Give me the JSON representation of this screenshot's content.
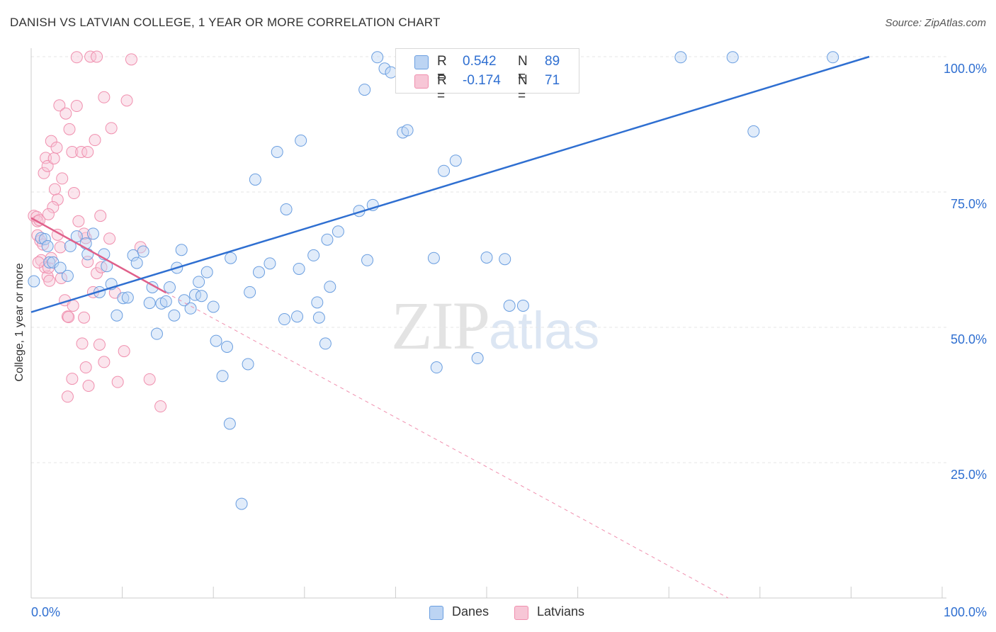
{
  "title": "DANISH VS LATVIAN COLLEGE, 1 YEAR OR MORE CORRELATION CHART",
  "source": "Source: ZipAtlas.com",
  "watermark": {
    "zip": "ZIP",
    "atlas": "atlas"
  },
  "colors": {
    "danes": "#6a9ee0",
    "danes_fill": "#bcd4f3",
    "danes_line": "#2f6fd1",
    "latvians": "#f08fae",
    "latvians_fill": "#f7c6d6",
    "latvians_line": "#e0608a",
    "value_text": "#2f6fd1"
  },
  "stats": [
    {
      "r_label": "R =",
      "r_value": "0.542",
      "n_label": "N =",
      "n_value": "89"
    },
    {
      "r_label": "R =",
      "r_value": "-0.174",
      "n_label": "N =",
      "n_value": "71"
    }
  ],
  "legend": [
    {
      "label": "Danes"
    },
    {
      "label": "Latvians"
    }
  ],
  "chart_data": {
    "type": "scatter",
    "ylabel": "College, 1 year or more",
    "xlabel": "",
    "x_tick_labels": [
      "0.0%",
      "100.0%"
    ],
    "y_tick_labels": [
      "25.0%",
      "50.0%",
      "75.0%",
      "100.0%"
    ],
    "xlim": [
      0,
      100
    ],
    "ylim": [
      0,
      100
    ],
    "grid": true,
    "legend_position": "bottom-center",
    "series": [
      {
        "name": "Danes",
        "trend": {
          "x": [
            0,
            92
          ],
          "y": [
            52.8,
            100
          ]
        },
        "points": [
          [
            0.3,
            58.5
          ],
          [
            1.1,
            66.5
          ],
          [
            1.5,
            66.3
          ],
          [
            1.8,
            65.0
          ],
          [
            2.0,
            62.0
          ],
          [
            2.4,
            62.0
          ],
          [
            3.2,
            61.0
          ],
          [
            4.0,
            59.5
          ],
          [
            4.3,
            65.0
          ],
          [
            5.0,
            66.8
          ],
          [
            6.0,
            65.5
          ],
          [
            6.2,
            63.5
          ],
          [
            6.8,
            67.3
          ],
          [
            7.5,
            56.5
          ],
          [
            8.0,
            63.5
          ],
          [
            8.3,
            61.3
          ],
          [
            8.8,
            58.0
          ],
          [
            9.4,
            52.2
          ],
          [
            10.1,
            55.4
          ],
          [
            10.6,
            55.5
          ],
          [
            11.2,
            63.3
          ],
          [
            11.6,
            61.9
          ],
          [
            12.3,
            64.0
          ],
          [
            13.0,
            54.5
          ],
          [
            13.3,
            57.4
          ],
          [
            13.8,
            48.8
          ],
          [
            14.3,
            54.4
          ],
          [
            14.8,
            54.8
          ],
          [
            15.2,
            57.4
          ],
          [
            15.7,
            52.2
          ],
          [
            16.0,
            61.0
          ],
          [
            16.5,
            64.3
          ],
          [
            16.8,
            55.0
          ],
          [
            17.5,
            53.5
          ],
          [
            18.0,
            56.0
          ],
          [
            18.4,
            58.4
          ],
          [
            18.7,
            55.8
          ],
          [
            19.3,
            60.2
          ],
          [
            20.0,
            53.8
          ],
          [
            20.3,
            47.5
          ],
          [
            21.0,
            41.0
          ],
          [
            21.5,
            46.4
          ],
          [
            21.9,
            62.8
          ],
          [
            23.1,
            17.4
          ],
          [
            23.8,
            43.2
          ],
          [
            24.0,
            56.5
          ],
          [
            24.6,
            77.3
          ],
          [
            25.0,
            60.2
          ],
          [
            26.2,
            61.8
          ],
          [
            28.0,
            71.8
          ],
          [
            27.0,
            82.4
          ],
          [
            27.8,
            51.5
          ],
          [
            29.2,
            52.0
          ],
          [
            29.6,
            84.5
          ],
          [
            29.4,
            60.8
          ],
          [
            21.8,
            32.2
          ],
          [
            31.0,
            63.3
          ],
          [
            31.4,
            54.6
          ],
          [
            31.6,
            51.8
          ],
          [
            32.3,
            47.0
          ],
          [
            32.5,
            66.2
          ],
          [
            32.8,
            57.5
          ],
          [
            33.7,
            67.7
          ],
          [
            36.6,
            93.9
          ],
          [
            36.0,
            71.5
          ],
          [
            36.9,
            62.4
          ],
          [
            37.5,
            72.6
          ],
          [
            38.0,
            99.9
          ],
          [
            38.8,
            97.8
          ],
          [
            39.5,
            97.1
          ],
          [
            40.8,
            86.0
          ],
          [
            41.3,
            86.4
          ],
          [
            44.2,
            62.8
          ],
          [
            44.5,
            42.6
          ],
          [
            46.6,
            80.8
          ],
          [
            47.0,
            99.9
          ],
          [
            47.5,
            98.5
          ],
          [
            49.0,
            44.3
          ],
          [
            50.0,
            62.9
          ],
          [
            52.0,
            62.6
          ],
          [
            52.5,
            54.0
          ],
          [
            54.0,
            54.0
          ],
          [
            55.0,
            100.0
          ],
          [
            55.5,
            99.8
          ],
          [
            71.3,
            99.9
          ],
          [
            77.0,
            99.9
          ],
          [
            88.0,
            99.9
          ],
          [
            79.3,
            86.2
          ],
          [
            45.3,
            78.9
          ]
        ]
      },
      {
        "name": "Latvians",
        "trend": {
          "x": [
            0,
            14.8
          ],
          "y": [
            70.2,
            56.4
          ]
        },
        "trend_ext": {
          "x": [
            14.8,
            76.5
          ],
          "y": [
            56.4,
            0
          ]
        },
        "points": [
          [
            0.3,
            70.6
          ],
          [
            0.6,
            70.4
          ],
          [
            0.7,
            69.6
          ],
          [
            0.9,
            69.8
          ],
          [
            0.7,
            67.0
          ],
          [
            1.0,
            66.0
          ],
          [
            1.3,
            65.3
          ],
          [
            1.1,
            62.4
          ],
          [
            1.5,
            61.1
          ],
          [
            1.8,
            59.4
          ],
          [
            1.9,
            61.0
          ],
          [
            2.2,
            62.8
          ],
          [
            2.0,
            58.6
          ],
          [
            1.6,
            81.3
          ],
          [
            1.4,
            78.5
          ],
          [
            1.8,
            79.8
          ],
          [
            2.2,
            84.4
          ],
          [
            2.5,
            81.2
          ],
          [
            2.8,
            83.2
          ],
          [
            3.1,
            91.0
          ],
          [
            2.6,
            75.5
          ],
          [
            2.9,
            73.6
          ],
          [
            2.4,
            72.2
          ],
          [
            3.4,
            77.5
          ],
          [
            3.8,
            89.5
          ],
          [
            4.2,
            86.6
          ],
          [
            4.5,
            82.4
          ],
          [
            5.0,
            90.9
          ],
          [
            5.5,
            82.4
          ],
          [
            6.2,
            82.4
          ],
          [
            7.0,
            84.6
          ],
          [
            4.7,
            74.8
          ],
          [
            5.2,
            69.6
          ],
          [
            6.0,
            66.5
          ],
          [
            5.8,
            67.3
          ],
          [
            6.8,
            56.5
          ],
          [
            7.2,
            60.0
          ],
          [
            7.6,
            70.6
          ],
          [
            8.0,
            92.5
          ],
          [
            8.8,
            86.8
          ],
          [
            9.2,
            56.4
          ],
          [
            10.5,
            91.9
          ],
          [
            11.0,
            99.5
          ],
          [
            12.0,
            64.8
          ],
          [
            4.0,
            52.0
          ],
          [
            4.1,
            51.9
          ],
          [
            3.3,
            59.1
          ],
          [
            3.7,
            55.0
          ],
          [
            4.6,
            54.0
          ],
          [
            5.8,
            51.8
          ],
          [
            5.6,
            47.0
          ],
          [
            6.2,
            62.1
          ],
          [
            6.0,
            42.6
          ],
          [
            6.3,
            39.2
          ],
          [
            4.0,
            37.2
          ],
          [
            4.5,
            40.5
          ],
          [
            8.0,
            43.6
          ],
          [
            7.5,
            46.8
          ],
          [
            9.5,
            39.9
          ],
          [
            10.2,
            45.6
          ],
          [
            13.0,
            40.4
          ],
          [
            14.2,
            35.4
          ],
          [
            5.0,
            99.9
          ],
          [
            6.5,
            100.0
          ],
          [
            7.2,
            100.0
          ],
          [
            7.7,
            61.1
          ],
          [
            2.9,
            67.1
          ],
          [
            3.2,
            64.8
          ],
          [
            0.8,
            62.0
          ],
          [
            1.9,
            70.9
          ],
          [
            8.6,
            66.4
          ]
        ]
      }
    ]
  }
}
